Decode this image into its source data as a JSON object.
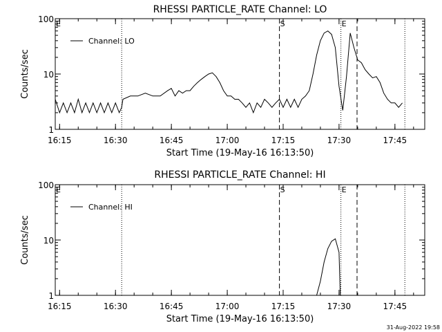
{
  "footer_timestamp": "31-Aug-2022 19:58",
  "chart_data": [
    {
      "type": "line",
      "title": "RHESSI PARTICLE_RATE Channel: LO",
      "xlabel": "Start Time (19-May-16 16:13:50)",
      "ylabel": "Counts/sec",
      "yscale": "log",
      "xlim": [
        "16:13:50",
        "17:53:00"
      ],
      "ylim": [
        1,
        100
      ],
      "xticks": [
        "16:15",
        "16:30",
        "16:45",
        "17:00",
        "17:15",
        "17:30",
        "17:45"
      ],
      "yticks": [
        "1",
        "10",
        "100"
      ],
      "legend": {
        "label": "Channel: LO",
        "placement": "top-left"
      },
      "markers": [
        {
          "label": "E",
          "time": "16:13:50",
          "style": "none"
        },
        {
          "label": "",
          "time": "16:31:40",
          "style": "dotted"
        },
        {
          "label": "S",
          "time": "17:14:00",
          "style": "dashed"
        },
        {
          "label": "E",
          "time": "17:30:30",
          "style": "dotted"
        },
        {
          "label": "",
          "time": "17:34:50",
          "style": "dashed"
        },
        {
          "label": "",
          "time": "17:47:40",
          "style": "dotted"
        }
      ],
      "series": [
        {
          "name": "Channel: LO",
          "x": [
            "16:13:50",
            "16:15:00",
            "16:16:00",
            "16:17:00",
            "16:18:00",
            "16:19:00",
            "16:20:00",
            "16:21:00",
            "16:22:00",
            "16:23:00",
            "16:24:00",
            "16:25:00",
            "16:26:00",
            "16:27:00",
            "16:28:00",
            "16:29:00",
            "16:30:00",
            "16:31:00",
            "16:31:40",
            "16:32:00",
            "16:34:00",
            "16:36:00",
            "16:38:00",
            "16:40:00",
            "16:42:00",
            "16:44:00",
            "16:45:00",
            "16:46:00",
            "16:47:00",
            "16:48:00",
            "16:49:00",
            "16:50:00",
            "16:51:00",
            "16:52:00",
            "16:53:00",
            "16:54:00",
            "16:55:00",
            "16:56:00",
            "16:57:00",
            "16:58:00",
            "16:59:00",
            "17:00:00",
            "17:01:00",
            "17:02:00",
            "17:03:00",
            "17:04:00",
            "17:05:00",
            "17:06:00",
            "17:07:00",
            "17:08:00",
            "17:09:00",
            "17:10:00",
            "17:11:00",
            "17:12:00",
            "17:13:00",
            "17:14:00",
            "17:15:00",
            "17:16:00",
            "17:17:00",
            "17:18:00",
            "17:19:00",
            "17:20:00",
            "17:21:00",
            "17:22:00",
            "17:23:00",
            "17:24:00",
            "17:25:00",
            "17:26:00",
            "17:27:00",
            "17:28:00",
            "17:29:00",
            "17:30:00",
            "17:31:00",
            "17:32:00",
            "17:33:00",
            "17:34:00",
            "17:35:00",
            "17:36:00",
            "17:37:00",
            "17:38:00",
            "17:39:00",
            "17:40:00",
            "17:41:00",
            "17:42:00",
            "17:43:00",
            "17:44:00",
            "17:45:00",
            "17:46:00",
            "17:47:00"
          ],
          "values": [
            3.5,
            2,
            3,
            2,
            3,
            2,
            3.5,
            2,
            3,
            2,
            3,
            2,
            3,
            2,
            3,
            2,
            3,
            2,
            2.5,
            3.5,
            4,
            4,
            4.5,
            4,
            4,
            5,
            5.5,
            4,
            5,
            4.5,
            5,
            5,
            6,
            7,
            8,
            9,
            10,
            10.5,
            9,
            7,
            5,
            4,
            4,
            3.5,
            3.5,
            3,
            2.5,
            3,
            2,
            3,
            2.5,
            3.5,
            3,
            2.5,
            3,
            3.5,
            2.5,
            3.5,
            2.5,
            3.5,
            2.5,
            3.5,
            4,
            5,
            10,
            22,
            40,
            55,
            60,
            52,
            30,
            6,
            2.2,
            9,
            55,
            30,
            18,
            16,
            12,
            10,
            8.5,
            9,
            7,
            4.5,
            3.5,
            3,
            3,
            2.5,
            3
          ]
        }
      ]
    },
    {
      "type": "line",
      "title": "RHESSI PARTICLE_RATE Channel: HI",
      "xlabel": "Start Time (19-May-16 16:13:50)",
      "ylabel": "Counts/sec",
      "yscale": "log",
      "xlim": [
        "16:13:50",
        "17:53:00"
      ],
      "ylim": [
        1,
        100
      ],
      "xticks": [
        "16:15",
        "16:30",
        "16:45",
        "17:00",
        "17:15",
        "17:30",
        "17:45"
      ],
      "yticks": [
        "1",
        "10",
        "100"
      ],
      "legend": {
        "label": "Channel: HI",
        "placement": "top-left"
      },
      "markers": [
        {
          "label": "E",
          "time": "16:13:50",
          "style": "none"
        },
        {
          "label": "",
          "time": "16:31:40",
          "style": "dotted"
        },
        {
          "label": "S",
          "time": "17:14:00",
          "style": "dashed"
        },
        {
          "label": "E",
          "time": "17:30:30",
          "style": "dotted"
        },
        {
          "label": "",
          "time": "17:34:50",
          "style": "dashed"
        },
        {
          "label": "",
          "time": "17:47:40",
          "style": "dotted"
        }
      ],
      "series": [
        {
          "name": "Channel: HI",
          "x": [
            "17:24:00",
            "17:25:00",
            "17:26:00",
            "17:27:00",
            "17:28:00",
            "17:29:00",
            "17:30:00",
            "17:30:20"
          ],
          "values": [
            1,
            1.8,
            4,
            7,
            9.5,
            10.5,
            6,
            1
          ]
        }
      ]
    }
  ]
}
